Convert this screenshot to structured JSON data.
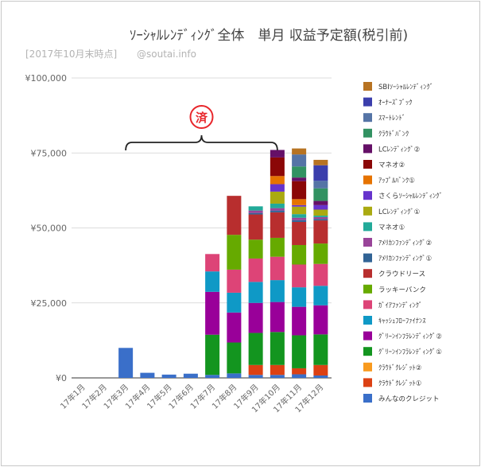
{
  "chart_data": {
    "type": "bar",
    "stacked": true,
    "title": "ｿｰｼｬﾙﾚﾝﾃﾞｨﾝｸﾞ全体　単月 収益予定額(税引前)",
    "subtitle": "[2017年10月末時点]",
    "subtitle_handle": "@soutai.info",
    "annotation": "済",
    "annotation_color": "#e8262b",
    "ylim": [
      0,
      100000
    ],
    "yticks": [
      0,
      25000,
      50000,
      75000,
      100000
    ],
    "ytick_labels": [
      "¥0",
      "¥25,000",
      "¥50,000",
      "¥75,000",
      "¥100,000"
    ],
    "grid": true,
    "legend_position": "right",
    "categories": [
      "17年1月",
      "17年2月",
      "17年3月",
      "17年4月",
      "17年5月",
      "17年6月",
      "17年7月",
      "17年8月",
      "17年9月",
      "17年10月",
      "17年11月",
      "17年12月"
    ],
    "series": [
      {
        "name": "みんなのクレジット",
        "color": "#3a6fc9",
        "values": [
          0,
          0,
          10000,
          1700,
          1100,
          1400,
          1000,
          1500,
          1000,
          1000,
          1200,
          800
        ]
      },
      {
        "name": "ｸﾗｳﾄﾞｸﾚｼﾞｯﾄ①",
        "color": "#dc4113",
        "values": [
          0,
          0,
          0,
          0,
          0,
          0,
          0,
          0,
          3300,
          3300,
          2000,
          3500
        ]
      },
      {
        "name": "ｸﾗｳﾄﾞｸﾚｼﾞｯﾄ②",
        "color": "#f89a1e",
        "values": [
          0,
          0,
          0,
          0,
          0,
          0,
          0,
          0,
          0,
          0,
          0,
          0
        ]
      },
      {
        "name": "ｸﾞﾘｰﾝｲﾝﾌﾗﾚﾝﾃﾞｨﾝｸﾞ①",
        "color": "#13951f",
        "values": [
          0,
          0,
          0,
          0,
          0,
          0,
          13400,
          10300,
          10700,
          11000,
          11000,
          10200
        ]
      },
      {
        "name": "ｸﾞﾘｰﾝｲﾝﾌﾗﾚﾝﾃﾞｨﾝｸﾞ②",
        "color": "#990099",
        "values": [
          0,
          0,
          0,
          0,
          0,
          0,
          14300,
          10000,
          10000,
          10000,
          9500,
          9700
        ]
      },
      {
        "name": "ｷｬｯｼｭﾌﾛｰﾌｧｲﾅﾝｽ",
        "color": "#0f99c6",
        "values": [
          0,
          0,
          0,
          0,
          0,
          0,
          6800,
          6600,
          7000,
          7300,
          6500,
          6500
        ]
      },
      {
        "name": "ｶﾞｲｱﾌｧﾝﾃﾞｨﾝｸﾞ",
        "color": "#dd4477",
        "values": [
          0,
          0,
          0,
          0,
          0,
          0,
          5800,
          7700,
          7800,
          7800,
          7600,
          7300
        ]
      },
      {
        "name": "ラッキーバンク",
        "color": "#66aa00",
        "values": [
          0,
          0,
          0,
          0,
          0,
          0,
          0,
          11600,
          6300,
          6300,
          6500,
          6800
        ]
      },
      {
        "name": "クラウドリース",
        "color": "#b82e2e",
        "values": [
          0,
          0,
          0,
          0,
          0,
          0,
          0,
          13000,
          8400,
          8500,
          7700,
          7700
        ]
      },
      {
        "name": "ｱﾒﾘｶﾝﾌｧﾝﾃﾞｨﾝｸﾞ①",
        "color": "#316395",
        "values": [
          0,
          0,
          0,
          0,
          0,
          0,
          0,
          0,
          500,
          600,
          600,
          500
        ]
      },
      {
        "name": "ｱﾒﾘｶﾝﾌｧﾝﾃﾞｨﾝｸﾞ②",
        "color": "#994499",
        "values": [
          0,
          0,
          0,
          0,
          0,
          0,
          0,
          0,
          800,
          800,
          800,
          600
        ]
      },
      {
        "name": "マネオ①",
        "color": "#22aa99",
        "values": [
          0,
          0,
          0,
          0,
          0,
          0,
          0,
          0,
          1400,
          1500,
          1200,
          500
        ]
      },
      {
        "name": "LCﾚﾝﾃﾞｨﾝｸﾞ①",
        "color": "#aaaa11",
        "values": [
          0,
          0,
          0,
          0,
          0,
          0,
          0,
          0,
          0,
          4000,
          2500,
          2000
        ]
      },
      {
        "name": "さくらｿｰｼｬﾙﾚﾝﾃﾞｨﾝｸﾞ",
        "color": "#6633cc",
        "values": [
          0,
          0,
          0,
          0,
          0,
          0,
          0,
          0,
          0,
          2500,
          500,
          1500
        ]
      },
      {
        "name": "ｱｯﾌﾟﾙﾊﾞﾝｸ①",
        "color": "#e67300",
        "values": [
          0,
          0,
          0,
          0,
          0,
          0,
          0,
          0,
          0,
          2700,
          2000,
          0
        ]
      },
      {
        "name": "マネオ②",
        "color": "#8b0707",
        "values": [
          0,
          0,
          0,
          0,
          0,
          0,
          0,
          0,
          0,
          6200,
          6000,
          0
        ]
      },
      {
        "name": "LCﾚﾝﾃﾞｨﾝｸﾞ②",
        "color": "#651067",
        "values": [
          0,
          0,
          0,
          0,
          0,
          0,
          0,
          0,
          0,
          2500,
          1200,
          1400
        ]
      },
      {
        "name": "ｸﾗｳﾄﾞﾊﾞﾝｸ",
        "color": "#329262",
        "values": [
          0,
          0,
          0,
          0,
          0,
          0,
          0,
          0,
          0,
          0,
          3700,
          4200
        ]
      },
      {
        "name": "ｽﾏｰﾄﾚﾝﾄﾞ",
        "color": "#5574a6",
        "values": [
          0,
          0,
          0,
          0,
          0,
          0,
          0,
          0,
          0,
          0,
          4000,
          2500
        ]
      },
      {
        "name": "ｵｰﾅｰｽﾞﾌﾞｯｸ",
        "color": "#3b3eac",
        "values": [
          0,
          0,
          0,
          0,
          0,
          0,
          0,
          0,
          0,
          0,
          0,
          5200
        ]
      },
      {
        "name": "SBIｿｰｼｬﾙﾚﾝﾃﾞｨﾝｸﾞ",
        "color": "#b77322",
        "values": [
          0,
          0,
          0,
          0,
          0,
          0,
          0,
          0,
          0,
          0,
          2000,
          1800
        ]
      }
    ]
  }
}
